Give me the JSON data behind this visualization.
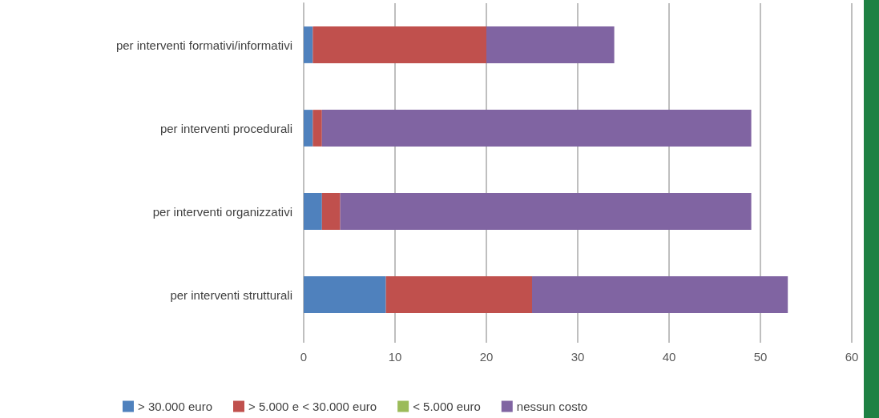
{
  "chart_data": {
    "type": "bar",
    "orientation": "horizontal",
    "stacked": true,
    "categories": [
      "per interventi formativi/informativi",
      "per interventi procedurali",
      "per interventi organizzativi",
      "per interventi strutturali"
    ],
    "series": [
      {
        "name": "> 30.000 euro",
        "color": "#4f81bd",
        "values": [
          1,
          1,
          2,
          9
        ]
      },
      {
        "name": "> 5.000 e < 30.000 euro",
        "color": "#c0504d",
        "values": [
          19,
          1,
          2,
          16
        ]
      },
      {
        "name": "< 5.000 euro",
        "color": "#9bbb59",
        "values": [
          0,
          0,
          0,
          0
        ]
      },
      {
        "name": "nessun costo",
        "color": "#8064a2",
        "values": [
          14,
          47,
          45,
          28
        ]
      }
    ],
    "xlim": [
      0,
      60
    ],
    "xticks": [
      0,
      10,
      20,
      30,
      40,
      50,
      60
    ],
    "grid": "x",
    "legend": "bottom"
  }
}
